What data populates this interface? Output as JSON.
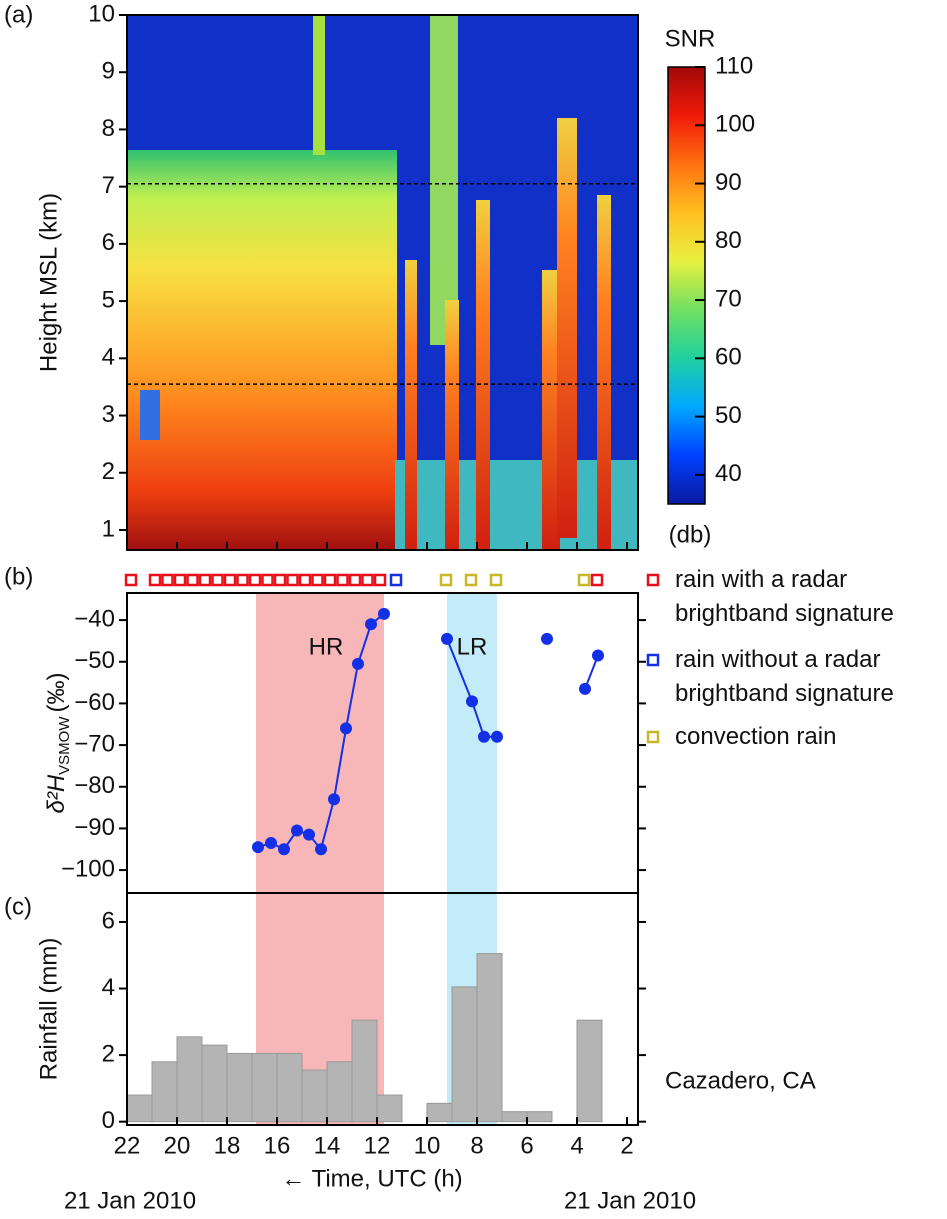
{
  "chart_data": [
    {
      "type": "heatmap",
      "label": "(a)",
      "ylabel": "Height MSL (km)",
      "xlim": [
        22,
        1.56
      ],
      "xticks": [
        22,
        20,
        18,
        16,
        14,
        12,
        10,
        8,
        6,
        4,
        2
      ],
      "ylim": [
        0.65,
        10
      ],
      "yticks": [
        1,
        2,
        3,
        4,
        5,
        6,
        7,
        8,
        9,
        10
      ],
      "reference_lines": [
        7.05,
        3.55
      ],
      "colorbar": {
        "title": "SNR",
        "unit": "(db)",
        "lim": [
          35,
          110
        ],
        "ticks": [
          40,
          50,
          60,
          70,
          80,
          90,
          100,
          110
        ],
        "colors": [
          "#0a1aa0",
          "#0040ff",
          "#00a8ff",
          "#20d0a0",
          "#70e060",
          "#e8f040",
          "#ffc020",
          "#ff7010",
          "#f01a0a",
          "#a00808"
        ]
      }
    },
    {
      "type": "line",
      "label": "(b)",
      "ylabel": "δ²H",
      "ylabel_sub": "VSMOW",
      "ylabel_unit": "(‰)",
      "xlim": [
        22,
        1.56
      ],
      "ylim": [
        -105.5,
        -33.5
      ],
      "yticks": [
        {
          "value": -100,
          "label": "−100"
        },
        {
          "value": -90,
          "label": "−90"
        },
        {
          "value": -80,
          "label": "−80"
        },
        {
          "value": -70,
          "label": "−70"
        },
        {
          "value": -60,
          "label": "−60"
        },
        {
          "value": -50,
          "label": "−50"
        },
        {
          "value": -40,
          "label": "−40"
        }
      ],
      "series": [
        {
          "color": "#1430e6",
          "x": [
            16.76,
            16.24,
            15.72,
            15.2,
            14.72,
            14.24,
            13.72,
            13.24,
            12.76,
            12.24,
            11.72,
            null,
            9.2,
            8.2,
            7.72,
            7.2,
            null,
            5.2,
            null,
            3.68,
            3.16
          ],
          "values": [
            -94.5,
            -93.5,
            -95,
            -90.5,
            -91.5,
            -95,
            -83,
            -66,
            -50.5,
            -41,
            -38.5,
            null,
            -44.5,
            -59.5,
            -68,
            -68,
            null,
            -44.5,
            null,
            -56.5,
            -48.5
          ]
        }
      ],
      "shaded_regions": [
        {
          "label": "HR",
          "x_start": 16.84,
          "x_end": 11.72,
          "color": "#f7b6b8"
        },
        {
          "label": "LR",
          "x_start": 9.2,
          "x_end": 7.2,
          "color": "#c4ecf8"
        }
      ],
      "rain_types": [
        {
          "name": "rain with a radar brightband signature",
          "color": "#e8101a",
          "times": [
            21.84,
            20.88,
            20.38,
            19.88,
            19.38,
            18.88,
            18.38,
            17.88,
            17.38,
            16.88,
            16.38,
            15.88,
            15.38,
            14.88,
            14.38,
            13.88,
            13.38,
            12.88,
            12.38,
            11.88,
            3.2
          ]
        },
        {
          "name": "rain without a radar brightband signature",
          "color": "#1430e6",
          "times": [
            11.24
          ]
        },
        {
          "name": "convection rain",
          "color": "#c8b828",
          "times": [
            9.24,
            8.24,
            7.24,
            3.72
          ]
        }
      ]
    },
    {
      "type": "histogram",
      "label": "(c)",
      "ylabel": "Rainfall (mm)",
      "color": "#b4b4b4",
      "bins": [
        22,
        21,
        20,
        19,
        18,
        17,
        16,
        15,
        14,
        13,
        12,
        11,
        10,
        9,
        8,
        7,
        6,
        5,
        4,
        3
      ],
      "values": [
        0.8,
        1.8,
        2.55,
        2.3,
        2.05,
        2.05,
        2.05,
        1.55,
        1.8,
        3.05,
        0.8,
        0,
        0.55,
        4.05,
        5.05,
        0.3,
        0.3,
        0,
        3.05
      ],
      "xlim": [
        22,
        1.56
      ],
      "xticks": [
        22,
        20,
        18,
        16,
        14,
        12,
        10,
        8,
        6,
        4,
        2
      ],
      "ylim": [
        -0.1,
        6.87
      ],
      "yticks": [
        0,
        2,
        4,
        6
      ],
      "xlabel": "← Time, UTC (h)",
      "annotation": "Cazadero, CA",
      "date_labels": [
        "21 Jan 2010",
        "21 Jan 2010"
      ]
    }
  ]
}
